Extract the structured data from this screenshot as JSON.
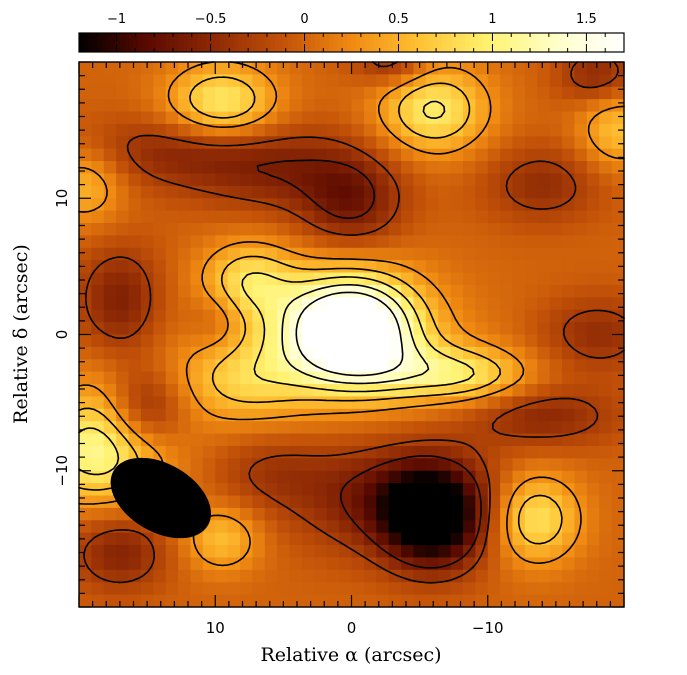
{
  "chart_data": {
    "type": "heatmap",
    "xlabel": "Relative α (arcsec)",
    "ylabel": "Relative δ (arcsec)",
    "xlim": [
      20,
      -20
    ],
    "ylim": [
      -20,
      20
    ],
    "x_ticks": [
      10,
      0,
      -10
    ],
    "x_tick_labels": [
      "10",
      "0",
      "−10"
    ],
    "y_ticks": [
      10,
      0,
      -10
    ],
    "y_tick_labels": [
      "10",
      "0",
      "−10"
    ],
    "colorbar": {
      "range": [
        -1.2,
        1.7
      ],
      "ticks": [
        -1,
        -0.5,
        0,
        0.5,
        1,
        1.5
      ],
      "tick_labels": [
        "−1",
        "−0.5",
        "0",
        "0.5",
        "1",
        "1.5"
      ],
      "colormap": [
        "#000000",
        "#5a0a00",
        "#8f2a05",
        "#c35208",
        "#f08a12",
        "#ffc233",
        "#fff270",
        "#ffffc8",
        "#ffffff"
      ]
    },
    "contours": {
      "positive_style": "solid",
      "negative_style": "dashed",
      "color": "#000000"
    },
    "beam": {
      "center": [
        14,
        -12
      ],
      "major_arcsec": 8,
      "minor_arcsec": 5,
      "pa_deg": 30,
      "color": "#000000"
    },
    "sources": [
      {
        "x": 0.0,
        "y": 0.5,
        "amp": 1.95,
        "sx": 3.3,
        "sy": 2.7
      },
      {
        "x": 2.0,
        "y": -0.5,
        "amp": 0.5,
        "sx": 6.5,
        "sy": 3.5
      },
      {
        "x": 7.5,
        "y": 4.0,
        "amp": 0.75,
        "sx": 2.4,
        "sy": 2.0
      },
      {
        "x": 8.0,
        "y": -3.5,
        "amp": 0.55,
        "sx": 3.5,
        "sy": 2.2
      },
      {
        "x": -6.0,
        "y": -2.8,
        "amp": 0.6,
        "sx": 4.5,
        "sy": 1.5
      },
      {
        "x": -9.0,
        "y": -3.2,
        "amp": 0.35,
        "sx": 3.0,
        "sy": 1.4
      },
      {
        "x": 9.5,
        "y": 17.0,
        "amp": 0.95,
        "sx": 2.8,
        "sy": 2.0
      },
      {
        "x": -6.0,
        "y": 16.5,
        "amp": 0.95,
        "sx": 2.8,
        "sy": 2.3
      },
      {
        "x": -19.5,
        "y": 15.0,
        "amp": 0.6,
        "sx": 2.0,
        "sy": 2.0
      },
      {
        "x": 19.5,
        "y": 11.0,
        "amp": 0.55,
        "sx": 2.0,
        "sy": 2.0
      },
      {
        "x": 18.5,
        "y": -9.0,
        "amp": 0.9,
        "sx": 3.5,
        "sy": 2.5
      },
      {
        "x": -13.5,
        "y": -13.5,
        "amp": 0.9,
        "sx": 2.3,
        "sy": 2.3
      },
      {
        "x": 9.5,
        "y": -15.0,
        "amp": 0.6,
        "sx": 2.0,
        "sy": 1.7
      },
      {
        "x": 19.0,
        "y": -6.0,
        "amp": 0.35,
        "sx": 2.0,
        "sy": 3.0
      },
      {
        "x": -6.0,
        "y": -13.5,
        "amp": -1.3,
        "sx": 2.6,
        "sy": 2.6
      },
      {
        "x": -3.0,
        "y": -12.0,
        "amp": -0.7,
        "sx": 5.0,
        "sy": 2.8
      },
      {
        "x": 0.0,
        "y": 9.5,
        "amp": -0.6,
        "sx": 2.6,
        "sy": 2.4
      },
      {
        "x": 5.0,
        "y": 12.0,
        "amp": -0.5,
        "sx": 5.0,
        "sy": 2.2
      },
      {
        "x": 13.0,
        "y": 13.5,
        "amp": -0.45,
        "sx": 5.0,
        "sy": 1.8
      },
      {
        "x": 17.0,
        "y": 2.5,
        "amp": -0.6,
        "sx": 2.2,
        "sy": 2.8
      },
      {
        "x": 15.0,
        "y": -5.5,
        "amp": -0.55,
        "sx": 2.0,
        "sy": 2.0
      },
      {
        "x": 17.0,
        "y": -16.0,
        "amp": -0.55,
        "sx": 2.5,
        "sy": 2.0
      },
      {
        "x": 10.0,
        "y": 1.0,
        "amp": -0.3,
        "sx": 1.6,
        "sy": 1.6
      },
      {
        "x": -14.0,
        "y": -6.0,
        "amp": -0.5,
        "sx": 4.0,
        "sy": 1.6
      },
      {
        "x": -18.0,
        "y": 0.0,
        "amp": -0.45,
        "sx": 3.0,
        "sy": 2.0
      },
      {
        "x": -14.0,
        "y": 11.0,
        "amp": -0.45,
        "sx": 3.0,
        "sy": 2.0
      },
      {
        "x": -3.0,
        "y": 20.0,
        "amp": -0.5,
        "sx": 2.0,
        "sy": 1.3
      },
      {
        "x": -18.0,
        "y": 19.0,
        "amp": -0.5,
        "sx": 2.0,
        "sy": 1.5
      },
      {
        "x": 6.0,
        "y": -10.0,
        "amp": -0.3,
        "sx": 3.0,
        "sy": 2.0
      }
    ],
    "contour_levels": [
      -0.6,
      -0.3,
      0.3,
      0.6,
      0.9,
      1.2,
      1.5
    ],
    "grid": false
  }
}
